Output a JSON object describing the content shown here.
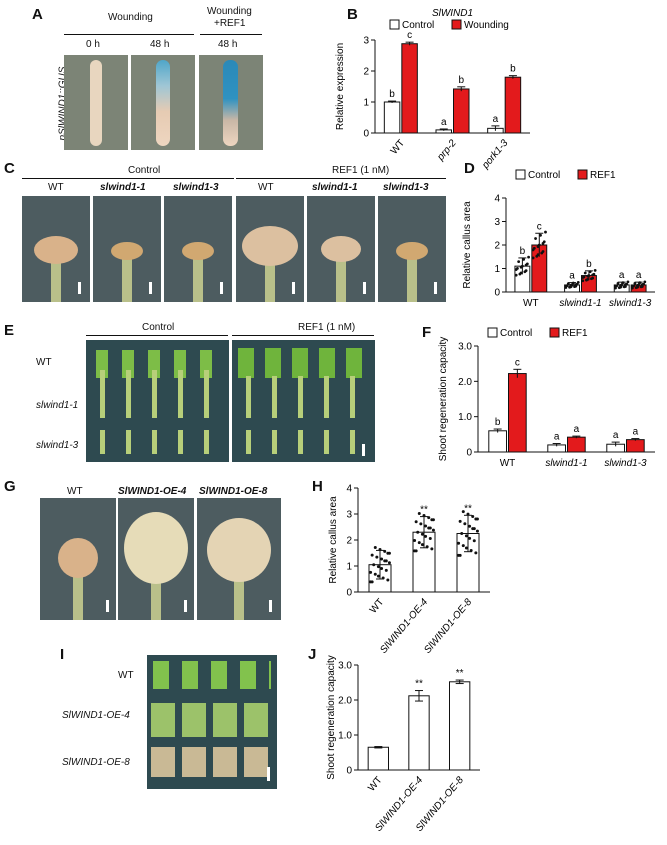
{
  "panelA": {
    "letter": "A",
    "label_y": "pSlWIND1::GUS",
    "hdr_wounding": "Wounding",
    "hdr_wref_1": "Wounding",
    "hdr_wref_2": "+REF1",
    "t0": "0 h",
    "t48a": "48 h",
    "t48b": "48 h"
  },
  "panelC": {
    "letter": "C",
    "control": "Control",
    "ref1": "REF1 (1 nM)",
    "genotypes": [
      "WT",
      "slwind1-1",
      "slwind1-3",
      "WT",
      "slwind1-1",
      "slwind1-3"
    ]
  },
  "panelE": {
    "letter": "E",
    "control": "Control",
    "ref1": "REF1 (1 nM)",
    "rows": [
      "WT",
      "slwind1-1",
      "slwind1-3"
    ]
  },
  "panelG": {
    "letter": "G",
    "genotypes": [
      "WT",
      "SlWIND1-OE-4",
      "SlWIND1-OE-8"
    ]
  },
  "panelI": {
    "letter": "I",
    "rows": [
      "WT",
      "SlWIND1-OE-4",
      "SlWIND1-OE-8"
    ]
  },
  "colors": {
    "control": "#ffffff",
    "treatment": "#e31a1c",
    "stroke": "#111111"
  },
  "chart_data": [
    {
      "panel": "B",
      "type": "bar",
      "title": "SlWIND1",
      "ylabel": "Relative expression",
      "xlabel": "",
      "ylim": [
        0,
        3
      ],
      "yticks": [
        0,
        1,
        2,
        3
      ],
      "categories": [
        "WT",
        "prp-2",
        "pork1-3"
      ],
      "series": [
        {
          "name": "Control",
          "values": [
            1.0,
            0.1,
            0.15
          ],
          "errors": [
            0.03,
            0.03,
            0.08
          ],
          "letters": [
            "b",
            "a",
            "a"
          ]
        },
        {
          "name": "Wounding",
          "values": [
            2.88,
            1.42,
            1.8
          ],
          "errors": [
            0.05,
            0.07,
            0.05
          ],
          "letters": [
            "c",
            "b",
            "b"
          ]
        }
      ]
    },
    {
      "panel": "D",
      "type": "bar",
      "title": "",
      "ylabel": "Relative callus area",
      "xlabel": "",
      "ylim": [
        0,
        4
      ],
      "yticks": [
        0,
        1,
        2,
        3,
        4
      ],
      "categories": [
        "WT",
        "slwind1-1",
        "slwind1-3"
      ],
      "series": [
        {
          "name": "Control",
          "values": [
            1.1,
            0.3,
            0.3
          ],
          "errors": [
            0.35,
            0.1,
            0.12
          ],
          "letters": [
            "b",
            "a",
            "a"
          ]
        },
        {
          "name": "REF1",
          "values": [
            2.0,
            0.7,
            0.3
          ],
          "errors": [
            0.5,
            0.2,
            0.12
          ],
          "letters": [
            "c",
            "b",
            "a"
          ]
        }
      ]
    },
    {
      "panel": "F",
      "type": "bar",
      "title": "",
      "ylabel": "Shoot regeneration capacity",
      "xlabel": "",
      "ylim": [
        0,
        3
      ],
      "yticks": [
        "0",
        "1.0",
        "2.0",
        "3.0"
      ],
      "categories": [
        "WT",
        "slwind1-1",
        "slwind1-3"
      ],
      "series": [
        {
          "name": "Control",
          "values": [
            0.6,
            0.2,
            0.22
          ],
          "errors": [
            0.05,
            0.04,
            0.06
          ],
          "letters": [
            "b",
            "a",
            "a"
          ]
        },
        {
          "name": "REF1",
          "values": [
            2.22,
            0.42,
            0.35
          ],
          "errors": [
            0.12,
            0.03,
            0.03
          ],
          "letters": [
            "c",
            "a",
            "a"
          ]
        }
      ]
    },
    {
      "panel": "H",
      "type": "bar",
      "title": "",
      "ylabel": "Relative callus area",
      "xlabel": "",
      "ylim": [
        0,
        4
      ],
      "yticks": [
        0,
        1,
        2,
        3,
        4
      ],
      "categories": [
        "WT",
        "SlWIND1-OE-4",
        "SlWIND1-OE-8"
      ],
      "values": [
        1.05,
        2.3,
        2.25
      ],
      "errors": [
        0.55,
        0.6,
        0.7
      ],
      "significance": [
        "",
        "**",
        "**"
      ]
    },
    {
      "panel": "J",
      "type": "bar",
      "title": "",
      "ylabel": "Shoot regeneration capacity",
      "xlabel": "",
      "ylim": [
        0,
        3
      ],
      "yticks": [
        "0",
        "1.0",
        "2.0",
        "3.0"
      ],
      "categories": [
        "WT",
        "SlWIND1-OE-4",
        "SlWIND1-OE-8"
      ],
      "values": [
        0.65,
        2.12,
        2.52
      ],
      "errors": [
        0.02,
        0.15,
        0.05
      ],
      "significance": [
        "",
        "**",
        "**"
      ]
    }
  ]
}
